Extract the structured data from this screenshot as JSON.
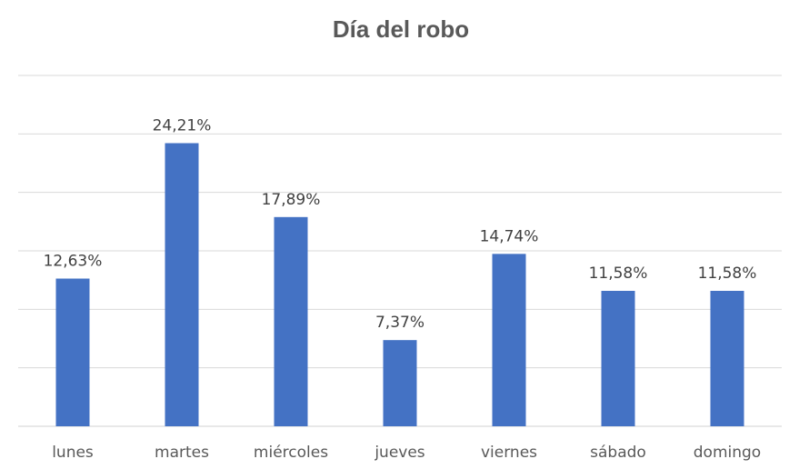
{
  "chart_data": {
    "type": "bar",
    "title": "Día del robo",
    "categories": [
      "lunes",
      "martes",
      "miércoles",
      "jueves",
      "viernes",
      "sábado",
      "domingo"
    ],
    "values": [
      12.63,
      24.21,
      17.89,
      7.37,
      14.74,
      11.58,
      11.58
    ],
    "data_labels": [
      "12,63%",
      "24,21%",
      "17,89%",
      "7,37%",
      "14,74%",
      "11,58%",
      "11,58%"
    ],
    "xlabel": "",
    "ylabel": "",
    "ylim": [
      0,
      30
    ],
    "grid": true,
    "legend": "none",
    "bar_color": "#4472C4"
  }
}
